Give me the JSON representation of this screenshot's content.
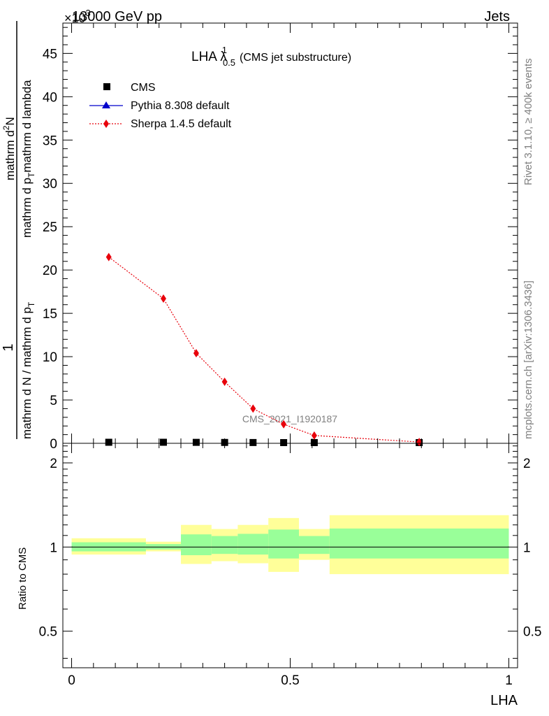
{
  "header": {
    "left": "13000 GeV pp",
    "right": "Jets",
    "exponent_prefix": "×10",
    "exponent": "3"
  },
  "side_labels": {
    "rivet": "Rivet 3.1.10, ≥ 400k events",
    "mcplots": "mcplots.cern.ch [arXiv:1306.3436]"
  },
  "chart_data": {
    "type": "scatter",
    "title_main": "LHA λ",
    "title_sup": "1",
    "title_sub": "0.5",
    "title_rest": "(CMS jet substructure)",
    "watermark": "CMS_2021_I1920187",
    "ylabel_parts": {
      "outer_num": "1",
      "outer_den": "mathrm d N / mathrm d p",
      "outer_den_sub": "T",
      "inner_num": "mathrm d",
      "inner_num_sup": "2",
      "inner_num_rest": "N",
      "inner_den": "mathrm d p",
      "inner_den_sub": "T",
      "inner_den_rest": "mathrm d lambda"
    },
    "xlabel": "LHA",
    "ratio_ylabel": "Ratio to CMS",
    "xlim": [
      -0.02,
      1.02
    ],
    "ylim": [
      0,
      48500
    ],
    "ratio_ylim": [
      0.37,
      2.35
    ],
    "y_ticks": [
      0,
      5,
      10,
      15,
      20,
      25,
      30,
      35,
      40,
      45
    ],
    "y_tick_scale": 1000,
    "x_ticks": [
      0,
      0.5,
      1
    ],
    "x_tick_labels": [
      "0",
      "0.5",
      "1"
    ],
    "ratio_ticks": [
      0.5,
      1,
      2
    ],
    "ratio_tick_labels": [
      "0.5",
      "1",
      "2"
    ],
    "legend": [
      {
        "label": "CMS",
        "marker": "square",
        "color": "#000000"
      },
      {
        "label": "Pythia 8.308 default",
        "marker": "triangle",
        "color": "#0000cc"
      },
      {
        "label": "Sherpa 1.4.5 default",
        "marker": "diamond",
        "color": "#e8000b"
      }
    ],
    "bins": [
      {
        "lo": 0.0,
        "hi": 0.17,
        "cms": 120,
        "sherpa": 21500,
        "green": [
          0.965,
          1.04
        ],
        "yellow": [
          0.94,
          1.075
        ]
      },
      {
        "lo": 0.17,
        "hi": 0.25,
        "cms": 120,
        "sherpa": 16700,
        "green": [
          0.98,
          1.025
        ],
        "yellow": [
          0.965,
          1.045
        ]
      },
      {
        "lo": 0.25,
        "hi": 0.32,
        "cms": 110,
        "sherpa": 10400,
        "green": [
          0.935,
          1.11
        ],
        "yellow": [
          0.87,
          1.2
        ]
      },
      {
        "lo": 0.32,
        "hi": 0.38,
        "cms": 100,
        "sherpa": 7100,
        "green": [
          0.945,
          1.095
        ],
        "yellow": [
          0.89,
          1.16
        ]
      },
      {
        "lo": 0.38,
        "hi": 0.45,
        "cms": 90,
        "sherpa": 4000,
        "green": [
          0.94,
          1.115
        ],
        "yellow": [
          0.875,
          1.2
        ]
      },
      {
        "lo": 0.45,
        "hi": 0.52,
        "cms": 70,
        "sherpa": 2200,
        "green": [
          0.91,
          1.155
        ],
        "yellow": [
          0.815,
          1.27
        ]
      },
      {
        "lo": 0.52,
        "hi": 0.59,
        "cms": 50,
        "sherpa": 900,
        "green": [
          0.945,
          1.095
        ],
        "yellow": [
          0.9,
          1.16
        ]
      },
      {
        "lo": 0.59,
        "hi": 1.0,
        "cms": 20,
        "sherpa": 150,
        "green": [
          0.91,
          1.165
        ],
        "yellow": [
          0.8,
          1.3
        ]
      }
    ]
  }
}
